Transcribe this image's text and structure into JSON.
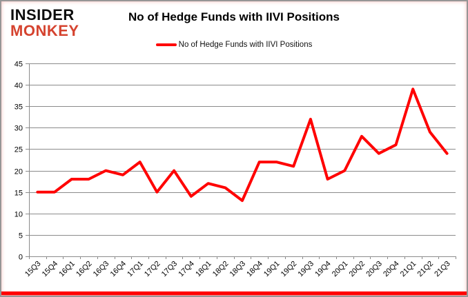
{
  "logo": {
    "line1": "INSIDER",
    "line2": "MONKEY",
    "accent_color": "#d5432f"
  },
  "header": {
    "title": "No of Hedge Funds with IIVI Positions"
  },
  "legend": {
    "label": "No of Hedge Funds with IIVI Positions",
    "swatch_color": "#ff0000"
  },
  "colors": {
    "line": "#ff0000",
    "grid": "#8a8a8a",
    "axis": "#8a8a8a",
    "axis_text": "#000000",
    "frame_border": "#969696",
    "bottom_bar": "#ff0000",
    "background": "#ffffff"
  },
  "chart_data": {
    "type": "line",
    "title": "No of Hedge Funds with IIVI Positions",
    "xlabel": "",
    "ylabel": "",
    "categories": [
      "15Q3",
      "15Q4",
      "16Q1",
      "16Q2",
      "16Q3",
      "16Q4",
      "17Q1",
      "17Q2",
      "17Q3",
      "17Q4",
      "18Q1",
      "18Q2",
      "18Q3",
      "18Q4",
      "19Q1",
      "19Q2",
      "19Q3",
      "19Q4",
      "20Q1",
      "20Q2",
      "20Q3",
      "20Q4",
      "21Q1",
      "21Q2",
      "21Q3"
    ],
    "series": [
      {
        "name": "No of Hedge Funds with IIVI Positions",
        "color": "#ff0000",
        "values": [
          15,
          15,
          18,
          18,
          20,
          19,
          22,
          15,
          20,
          14,
          17,
          16,
          13,
          22,
          22,
          21,
          32,
          18,
          20,
          28,
          24,
          26,
          39,
          29,
          24
        ]
      }
    ],
    "ylim": [
      0,
      45
    ],
    "ytick_step": 5,
    "grid": true,
    "legend_position": "top-center"
  }
}
